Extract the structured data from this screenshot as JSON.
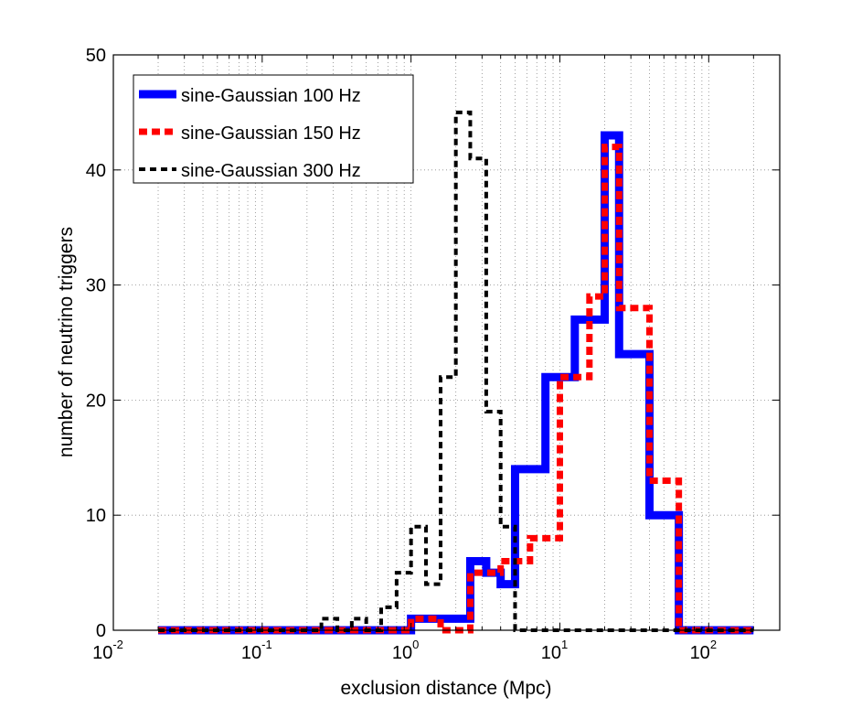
{
  "chart_data": {
    "type": "line",
    "style": "stairs",
    "title": "",
    "xlabel": "exclusion distance (Mpc)",
    "ylabel": "number of neutrino triggers",
    "xscale": "log",
    "xlim": [
      0.01,
      300
    ],
    "ylim": [
      0,
      50
    ],
    "grid": "dotted",
    "legend_position": "top-left",
    "x_ticks": [
      {
        "base": "10",
        "exp": "-2",
        "value": 0.01
      },
      {
        "base": "10",
        "exp": "-1",
        "value": 0.1
      },
      {
        "base": "10",
        "exp": "0",
        "value": 1
      },
      {
        "base": "10",
        "exp": "1",
        "value": 10
      },
      {
        "base": "10",
        "exp": "2",
        "value": 100
      }
    ],
    "y_ticks": [
      "0",
      "10",
      "20",
      "30",
      "40",
      "50"
    ],
    "x": [
      0.02,
      0.025,
      0.032,
      0.04,
      0.05,
      0.063,
      0.08,
      0.1,
      0.126,
      0.158,
      0.2,
      0.25,
      0.32,
      0.4,
      0.5,
      0.63,
      0.8,
      1.0,
      1.26,
      1.58,
      2.0,
      2.5,
      3.2,
      4.0,
      5.0,
      6.3,
      8.0,
      10.0,
      12.6,
      15.8,
      20.0,
      25.0,
      32.0,
      40.0,
      50.0,
      63.0,
      80.0,
      100.0,
      126.0,
      158.0,
      200.0
    ],
    "series": [
      {
        "name": "sine-Gaussian 100 Hz",
        "color": "#0000ff",
        "dash": "solid",
        "values": [
          0,
          0,
          0,
          0,
          0,
          0,
          0,
          0,
          0,
          0,
          0,
          0,
          0,
          0,
          0,
          0,
          0,
          1,
          1,
          1,
          1,
          6,
          5,
          4,
          14,
          14,
          22,
          22,
          27,
          27,
          43,
          24,
          24,
          10,
          10,
          0,
          0,
          0,
          0,
          0,
          0
        ]
      },
      {
        "name": "sine-Gaussian 150 Hz",
        "color": "#ff0000",
        "dash": "dashed",
        "values": [
          0,
          0,
          0,
          0,
          0,
          0,
          0,
          0,
          0,
          0,
          0,
          0,
          0,
          0,
          0,
          0,
          0,
          1,
          1,
          0,
          0,
          5,
          5,
          6,
          6,
          8,
          8,
          22,
          22,
          29,
          42,
          28,
          28,
          13,
          13,
          0,
          0,
          0,
          0,
          0,
          0
        ]
      },
      {
        "name": "sine-Gaussian 300 Hz",
        "color": "#000000",
        "dash": "dashed",
        "values": [
          0,
          0,
          0,
          0,
          0,
          0,
          0,
          0,
          0,
          0,
          0,
          1,
          0,
          1,
          0,
          2,
          5,
          9,
          4,
          22,
          45,
          41,
          19,
          9,
          0,
          0,
          0,
          0,
          0,
          0,
          0,
          0,
          0,
          0,
          0,
          0,
          0,
          0,
          0,
          0,
          0
        ]
      }
    ]
  }
}
